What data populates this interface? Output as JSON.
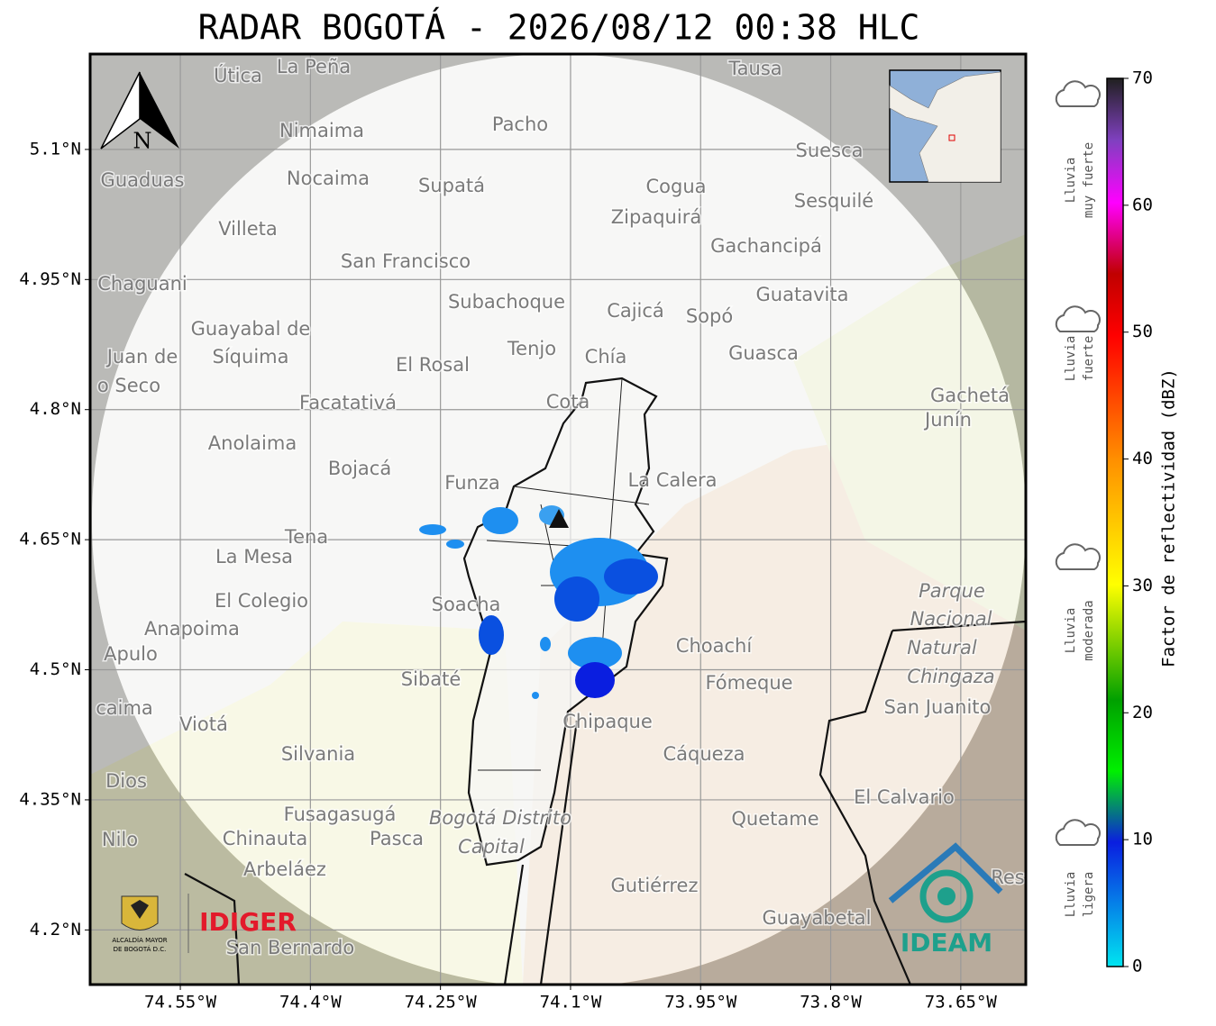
{
  "header": {
    "title": "RADAR BOGOTÁ - 2026/08/12 00:38 HLC"
  },
  "map": {
    "xlim": [
      -74.654,
      -73.575
    ],
    "ylim": [
      4.137,
      5.21
    ],
    "lat_ticks": [
      {
        "value": 5.1,
        "label": "5.1°N"
      },
      {
        "value": 4.95,
        "label": "4.95°N"
      },
      {
        "value": 4.8,
        "label": "4.8°N"
      },
      {
        "value": 4.65,
        "label": "4.65°N"
      },
      {
        "value": 4.5,
        "label": "4.5°N"
      },
      {
        "value": 4.35,
        "label": "4.35°N"
      },
      {
        "value": 4.2,
        "label": "4.2°N"
      }
    ],
    "lon_ticks": [
      {
        "value": -74.55,
        "label": "74.55°W"
      },
      {
        "value": -74.4,
        "label": "74.4°W"
      },
      {
        "value": -74.25,
        "label": "74.25°W"
      },
      {
        "value": -74.1,
        "label": "74.1°W"
      },
      {
        "value": -73.95,
        "label": "73.95°W"
      },
      {
        "value": -73.8,
        "label": "73.8°W"
      },
      {
        "value": -73.65,
        "label": "73.65°W"
      }
    ],
    "north": "N",
    "places": [
      "La Peña",
      "Útica",
      "Tausa",
      "Pacho",
      "Nimaima",
      "Guaduas",
      "Nocaima",
      "Supatá",
      "Cogua",
      "Suesca",
      "Sesquilé",
      "Zipaquirá",
      "Villeta",
      "Gachancipá",
      "San Francisco",
      "Chaguani",
      "Guatavita",
      "Subachoque",
      "Cajicá",
      "Sopó",
      "Guayabal de",
      "Síquima",
      "Juan de",
      "o Seco",
      "Tenjo",
      "Chía",
      "El Rosal",
      "Guasca",
      "Facatativá",
      "Cota",
      "Gachetá",
      "Junín",
      "Anolaima",
      "Bojacá",
      "Funza",
      "La Calera",
      "Tena",
      "La Mesa",
      "Parque",
      "El Colegio",
      "Soacha",
      "Nacional",
      "Anapoima",
      "Choachí",
      "Natural",
      "Apulo",
      "Chingaza",
      "Sibaté",
      "Fómeque",
      "San Juanito",
      "caima",
      "Viotá",
      "Chipaque",
      "Silvania",
      "Cáqueza",
      "Dios",
      "El Calvario",
      "Fusagasugá",
      "Bogotá Distrito",
      "Quetame",
      "Nilo",
      "Chinauta",
      "Pasca",
      "Capital",
      "Arbeláez",
      "Res",
      "Gutiérrez",
      "Guayabetal",
      "San Bernardo"
    ]
  },
  "colorbar": {
    "label": "Factor de reflectividad (dBZ)",
    "range": [
      0,
      70
    ],
    "ticks": [
      0,
      10,
      20,
      30,
      40,
      50,
      60,
      70
    ]
  },
  "rain_levels": [
    [
      "Lluvia",
      "muy fuerte"
    ],
    [
      "Lluvia",
      "fuerte"
    ],
    [
      "Lluvia",
      "moderada"
    ],
    [
      "Lluvia",
      "ligera"
    ]
  ],
  "logos": {
    "alcaldia": [
      "ALCALDÍA MAYOR",
      "DE BOGOTÁ D.C."
    ],
    "idiger": "IDIGER",
    "ideam": "IDEAM"
  }
}
